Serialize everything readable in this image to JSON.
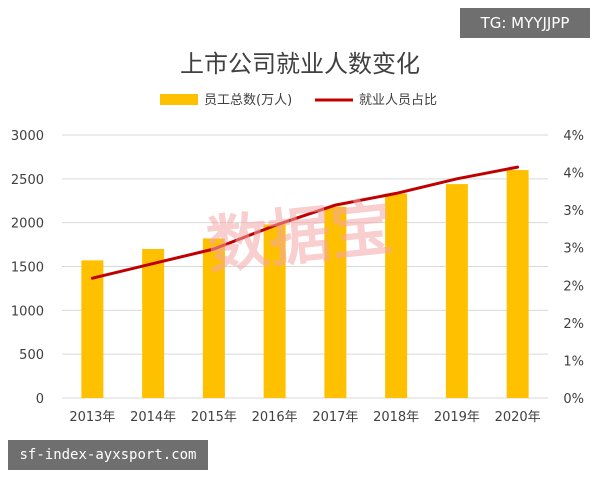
{
  "badges": {
    "top_right": "TG: MYYJJPP",
    "bottom_left": "sf-index-ayxsport.com"
  },
  "watermark": "数据宝",
  "colors": {
    "bar": "#FFC000",
    "line": "#C00000",
    "grid": "#D9D9D9",
    "axis_text": "#404040",
    "title": "#404040",
    "watermark": "#F2A6A6",
    "badge_bg": "#6F6F6F"
  },
  "chart_data": {
    "type": "bar",
    "title": "上市公司就业人数变化",
    "categories": [
      "2013年",
      "2014年",
      "2015年",
      "2016年",
      "2017年",
      "2018年",
      "2019年",
      "2020年"
    ],
    "series": [
      {
        "name": "员工总数(万人)",
        "type": "bar",
        "axis": "left",
        "values": [
          1570,
          1700,
          1820,
          1980,
          2180,
          2330,
          2440,
          2600
        ]
      },
      {
        "name": "就业人员占比",
        "type": "line",
        "axis": "right",
        "values": [
          2.05,
          2.3,
          2.55,
          2.95,
          3.3,
          3.5,
          3.75,
          3.95
        ]
      }
    ],
    "ylim_left": [
      0,
      3000
    ],
    "yticks_left": [
      0,
      500,
      1000,
      1500,
      2000,
      2500,
      3000
    ],
    "ylim_right": [
      0,
      4.5
    ],
    "yticks_right": [
      "0%",
      "1%",
      "2%",
      "2%",
      "3%",
      "3%",
      "4%",
      "4%"
    ],
    "grid": true,
    "legend_position": "top-center"
  }
}
